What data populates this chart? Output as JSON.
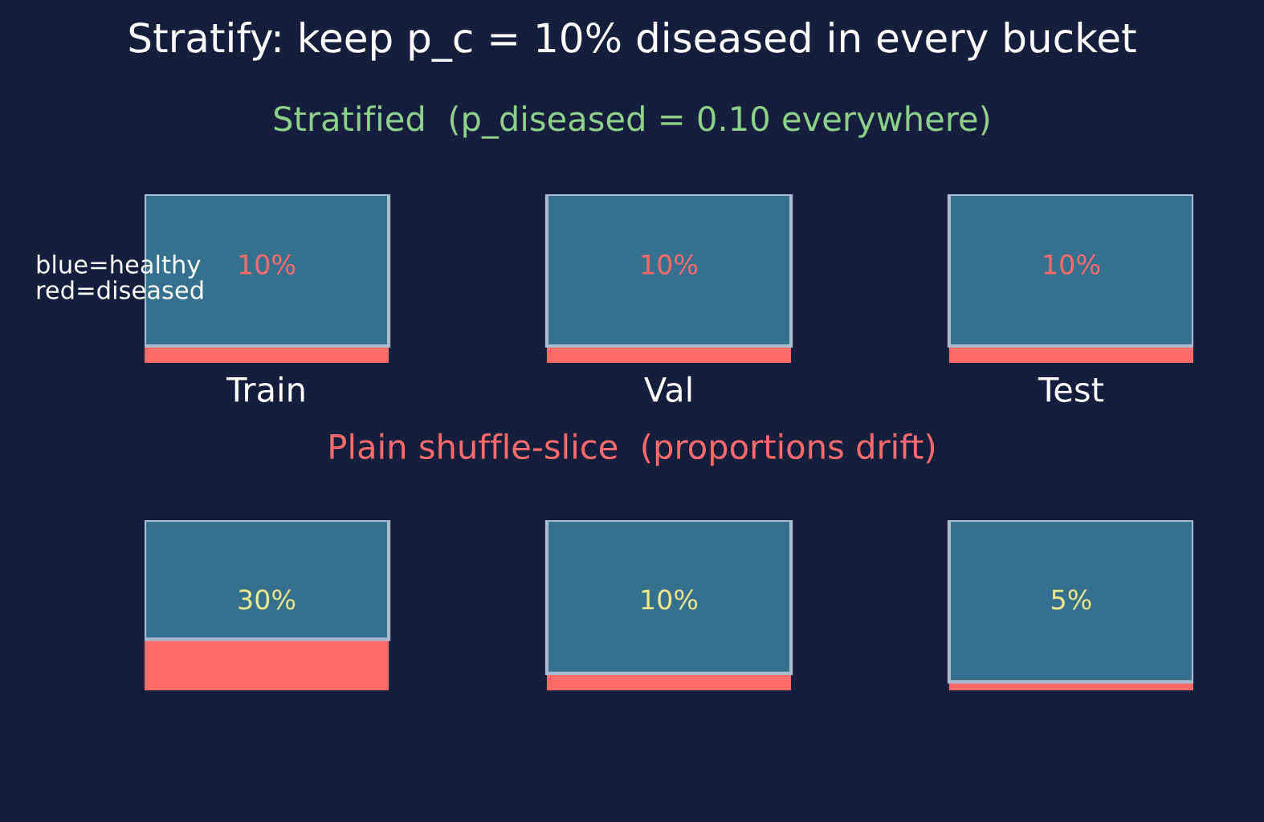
{
  "chart_data": [
    {
      "type": "bar",
      "stacked": true,
      "title": "Stratify: keep p_c = 10% diseased in every bucket",
      "subtitle": "Stratified  (p_diseased = 0.10 everywhere)",
      "categories": [
        "Train",
        "Val",
        "Test"
      ],
      "ylim": [
        0,
        100
      ],
      "tick_labels": "x",
      "annotations": [
        "blue=healthy\nred=diseased"
      ],
      "series": [
        {
          "color": "#ff6b6b",
          "values": [
            10,
            10,
            10
          ],
          "value_labels": [
            "10%",
            "10%",
            "10%"
          ]
        },
        {
          "color": "#35718e",
          "values": [
            90,
            90,
            90
          ]
        }
      ]
    },
    {
      "type": "bar",
      "stacked": true,
      "title": "Plain shuffle-slice  (proportions drift)",
      "categories": [
        null,
        null,
        null
      ],
      "ylim": [
        0,
        100
      ],
      "tick_labels": false,
      "series": [
        {
          "color": "#ff6b6b",
          "values": [
            30,
            10,
            5
          ],
          "value_labels": [
            "30%",
            "10%",
            "5%"
          ]
        },
        {
          "color": "#35718e",
          "values": [
            70,
            90,
            95
          ]
        }
      ]
    }
  ]
}
